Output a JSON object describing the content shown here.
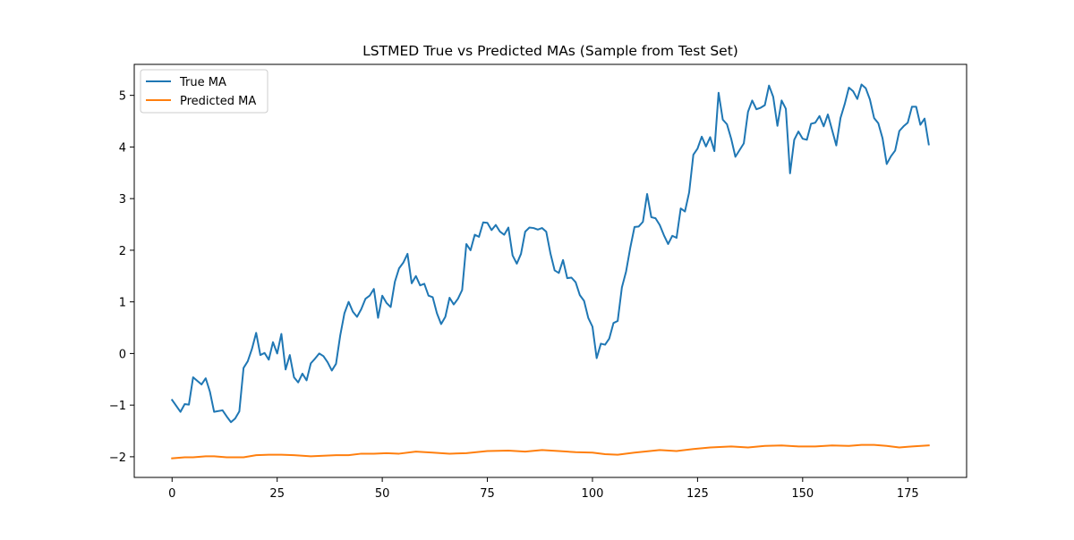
{
  "chart_data": {
    "type": "line",
    "title": "LSTMED True vs Predicted MAs (Sample from Test Set)",
    "xlabel": "",
    "ylabel": "",
    "xlim": [
      -9,
      189
    ],
    "ylim": [
      -2.4,
      5.6
    ],
    "xticks": [
      0,
      25,
      50,
      75,
      100,
      125,
      150,
      175
    ],
    "yticks": [
      -2,
      -1,
      0,
      1,
      2,
      3,
      4,
      5
    ],
    "grid": false,
    "legend_position": "upper left",
    "x_range": [
      0,
      180
    ],
    "series": [
      {
        "name": "True MA",
        "color": "#1f77b4",
        "x": [
          0,
          2,
          3,
          4,
          5,
          7,
          8,
          9,
          10,
          12,
          13,
          14,
          15,
          16,
          17,
          18,
          19,
          20,
          21,
          22,
          23,
          24,
          25,
          26,
          27,
          28,
          29,
          30,
          31,
          32,
          33,
          34,
          35,
          36,
          37,
          38,
          39,
          40,
          41,
          42,
          43,
          44,
          45,
          46,
          47,
          48,
          49,
          50,
          51,
          52,
          53,
          54,
          55,
          56,
          57,
          58,
          59,
          60,
          61,
          62,
          63,
          64,
          65,
          66,
          67,
          68,
          69,
          70,
          71,
          72,
          73,
          74,
          75,
          76,
          77,
          78,
          79,
          80,
          81,
          82,
          83,
          84,
          85,
          86,
          87,
          88,
          89,
          90,
          91,
          92,
          93,
          94,
          95,
          96,
          97,
          98,
          99,
          100,
          101,
          102,
          103,
          104,
          105,
          106,
          107,
          108,
          109,
          110,
          111,
          112,
          113,
          114,
          115,
          116,
          117,
          118,
          119,
          120,
          121,
          122,
          123,
          124,
          125,
          126,
          127,
          128,
          129,
          130,
          131,
          132,
          133,
          134,
          135,
          136,
          137,
          138,
          139,
          140,
          141,
          142,
          143,
          144,
          145,
          146,
          147,
          148,
          149,
          150,
          151,
          152,
          153,
          154,
          155,
          156,
          157,
          158,
          159,
          160,
          161,
          162,
          163,
          164,
          165,
          166,
          167,
          168,
          169,
          170,
          171,
          172,
          173,
          174,
          175,
          176,
          177,
          178,
          179,
          180
        ],
        "y": [
          -0.9,
          -1.13,
          -0.98,
          -0.99,
          -0.46,
          -0.6,
          -0.48,
          -0.74,
          -1.13,
          -1.1,
          -1.22,
          -1.33,
          -1.26,
          -1.12,
          -0.28,
          -0.15,
          0.09,
          0.4,
          -0.03,
          0.01,
          -0.12,
          0.22,
          0.0,
          0.38,
          -0.31,
          -0.03,
          -0.46,
          -0.56,
          -0.39,
          -0.52,
          -0.19,
          -0.1,
          0.0,
          -0.05,
          -0.17,
          -0.33,
          -0.2,
          0.35,
          0.78,
          1.0,
          0.81,
          0.71,
          0.86,
          1.06,
          1.12,
          1.25,
          0.69,
          1.12,
          0.98,
          0.9,
          1.39,
          1.65,
          1.76,
          1.93,
          1.36,
          1.5,
          1.32,
          1.35,
          1.12,
          1.09,
          0.78,
          0.57,
          0.71,
          1.08,
          0.95,
          1.06,
          1.23,
          2.12,
          2.0,
          2.3,
          2.26,
          2.54,
          2.53,
          2.39,
          2.49,
          2.36,
          2.3,
          2.44,
          1.9,
          1.74,
          1.93,
          2.36,
          2.44,
          2.43,
          2.4,
          2.43,
          2.36,
          1.94,
          1.61,
          1.56,
          1.81,
          1.46,
          1.47,
          1.38,
          1.13,
          1.02,
          0.69,
          0.52,
          -0.09,
          0.19,
          0.17,
          0.29,
          0.59,
          0.63,
          1.28,
          1.59,
          2.05,
          2.45,
          2.46,
          2.55,
          3.09,
          2.64,
          2.62,
          2.49,
          2.29,
          2.12,
          2.28,
          2.24,
          2.81,
          2.75,
          3.12,
          3.85,
          3.97,
          4.2,
          4.01,
          4.19,
          3.92,
          5.05,
          4.53,
          4.44,
          4.16,
          3.81,
          3.94,
          4.07,
          4.68,
          4.9,
          4.73,
          4.76,
          4.81,
          5.19,
          4.97,
          4.41,
          4.9,
          4.74,
          3.49,
          4.14,
          4.3,
          4.16,
          4.14,
          4.45,
          4.47,
          4.6,
          4.4,
          4.63,
          4.33,
          4.03,
          4.56,
          4.83,
          5.15,
          5.08,
          4.93,
          5.21,
          5.14,
          4.92,
          4.56,
          4.46,
          4.17,
          3.67,
          3.82,
          3.93,
          4.31,
          4.4,
          4.47,
          4.78,
          4.78,
          4.43,
          4.55,
          4.05
        ]
      },
      {
        "name": "Predicted MA",
        "color": "#ff7f0e",
        "x": [
          0,
          3,
          5,
          8,
          10,
          13,
          17,
          20,
          23,
          26,
          29,
          33,
          36,
          39,
          42,
          45,
          48,
          51,
          54,
          58,
          62,
          66,
          70,
          75,
          80,
          84,
          88,
          92,
          96,
          100,
          103,
          106,
          110,
          116,
          120,
          124,
          128,
          133,
          137,
          141,
          145,
          149,
          153,
          157,
          161,
          164,
          167,
          170,
          173,
          176,
          180
        ],
        "y": [
          -2.03,
          -2.01,
          -2.01,
          -1.99,
          -1.99,
          -2.01,
          -2.01,
          -1.97,
          -1.96,
          -1.96,
          -1.97,
          -1.99,
          -1.98,
          -1.97,
          -1.97,
          -1.94,
          -1.94,
          -1.93,
          -1.94,
          -1.9,
          -1.92,
          -1.94,
          -1.93,
          -1.89,
          -1.88,
          -1.9,
          -1.87,
          -1.89,
          -1.91,
          -1.92,
          -1.95,
          -1.96,
          -1.92,
          -1.87,
          -1.89,
          -1.85,
          -1.82,
          -1.8,
          -1.82,
          -1.79,
          -1.78,
          -1.8,
          -1.8,
          -1.78,
          -1.79,
          -1.77,
          -1.77,
          -1.79,
          -1.82,
          -1.8,
          -1.78
        ]
      }
    ]
  }
}
